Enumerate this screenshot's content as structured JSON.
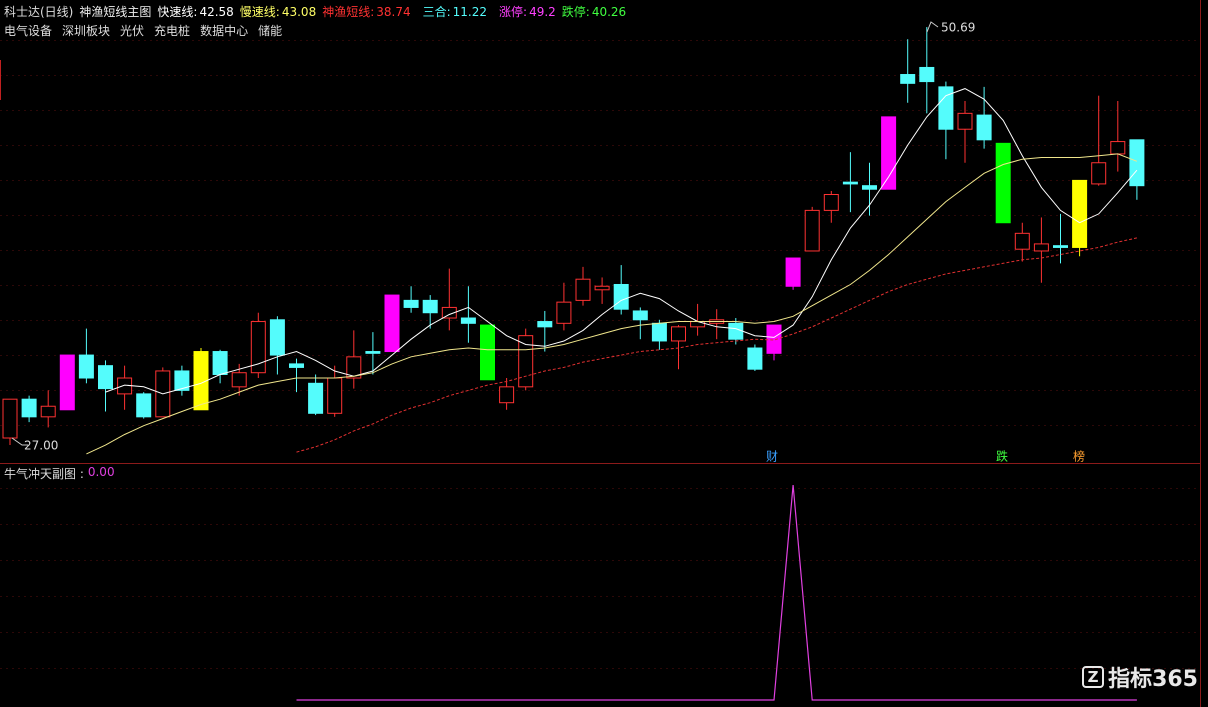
{
  "header": {
    "stock": "科士达(日线)",
    "indicator": "神渔短线主图",
    "readouts": [
      {
        "name": "快速线:",
        "value": 42.58,
        "color": "#ffffff"
      },
      {
        "name": "慢速线:",
        "value": 43.08,
        "color": "#ffff66"
      },
      {
        "name": "神渔短线:",
        "value": 38.74,
        "color": "#ff3232"
      },
      {
        "name": "三合:",
        "value": 11.22,
        "color": "#54fcfc"
      },
      {
        "name": "涨停:",
        "value": 49.2,
        "color": "#ff40ff"
      },
      {
        "name": "跌停:",
        "value": 40.26,
        "color": "#40ff40"
      }
    ],
    "sectors": [
      "电气设备",
      "深圳板块",
      "光伏",
      "充电桩",
      "数据中心",
      "储能"
    ]
  },
  "chart_data": [
    {
      "type": "candlestick",
      "ylim": [
        26.04,
        51.09
      ],
      "open": [
        27.4,
        29.6,
        28.6,
        29.0,
        32.1,
        31.5,
        29.9,
        29.9,
        28.6,
        31.2,
        29.0,
        32.3,
        30.3,
        31.1,
        34.1,
        31.6,
        30.5,
        28.8,
        30.8,
        32.3,
        32.3,
        35.2,
        35.2,
        34.2,
        34.2,
        33.8,
        29.4,
        30.3,
        34.0,
        33.9,
        35.2,
        35.8,
        36.1,
        34.6,
        33.9,
        32.9,
        33.7,
        33.9,
        33.9,
        32.5,
        32.2,
        36.0,
        38.0,
        40.3,
        41.9,
        41.7,
        41.5,
        48.0,
        48.4,
        47.3,
        44.9,
        45.7,
        44.1,
        38.1,
        38.0,
        38.3,
        38.2,
        41.8,
        43.5,
        44.3
      ],
      "high": [
        29.6,
        29.8,
        30.1,
        32.1,
        33.6,
        31.8,
        31.5,
        30.0,
        31.4,
        31.5,
        32.5,
        32.4,
        31.6,
        34.5,
        34.3,
        31.9,
        31.0,
        31.5,
        33.5,
        33.4,
        35.5,
        36.0,
        35.5,
        37.0,
        36.0,
        33.8,
        30.8,
        33.6,
        34.6,
        36.2,
        37.1,
        36.5,
        37.2,
        34.8,
        34.1,
        33.8,
        35.0,
        34.7,
        34.2,
        32.7,
        33.8,
        37.6,
        40.5,
        41.4,
        43.6,
        43.0,
        45.6,
        50.0,
        50.69,
        47.6,
        46.5,
        47.3,
        44.1,
        39.6,
        39.9,
        40.1,
        42.0,
        46.8,
        46.5,
        44.3
      ],
      "low": [
        27.0,
        28.3,
        28.0,
        29.0,
        30.5,
        28.9,
        29.0,
        28.5,
        28.6,
        29.8,
        29.0,
        30.5,
        29.8,
        30.8,
        31.0,
        30.0,
        28.7,
        28.6,
        30.2,
        31.0,
        32.3,
        34.5,
        33.6,
        33.5,
        32.8,
        30.7,
        29.0,
        30.1,
        32.3,
        33.5,
        34.9,
        35.0,
        34.4,
        33.0,
        32.4,
        31.3,
        33.2,
        33.0,
        32.7,
        31.2,
        31.8,
        35.8,
        38.0,
        39.6,
        40.2,
        40.0,
        41.5,
        46.4,
        45.8,
        43.2,
        43.0,
        43.8,
        39.6,
        37.4,
        36.2,
        37.3,
        37.7,
        41.7,
        42.5,
        40.9
      ],
      "close": [
        29.6,
        28.6,
        29.2,
        32.1,
        30.8,
        30.2,
        30.8,
        28.6,
        31.2,
        30.1,
        32.3,
        31.0,
        31.1,
        34.0,
        32.1,
        31.4,
        28.8,
        30.8,
        32.0,
        32.2,
        35.5,
        34.8,
        34.5,
        34.8,
        33.9,
        30.7,
        30.3,
        33.2,
        33.7,
        35.1,
        36.4,
        36.0,
        34.7,
        34.1,
        32.9,
        33.7,
        34.0,
        34.1,
        33.0,
        31.3,
        33.8,
        37.6,
        40.3,
        41.2,
        41.8,
        41.5,
        45.6,
        47.5,
        47.6,
        44.9,
        45.8,
        44.3,
        39.6,
        39.0,
        38.4,
        38.2,
        42.0,
        43.0,
        44.2,
        41.7
      ],
      "colors": [
        "#ff3232",
        "#54fcfc",
        "#ff3232",
        "#ff00ff",
        "#54fcfc",
        "#54fcfc",
        "#ff3232",
        "#54fcfc",
        "#ff3232",
        "#54fcfc",
        "#ffff00",
        "#54fcfc",
        "#ff3232",
        "#ff3232",
        "#54fcfc",
        "#54fcfc",
        "#54fcfc",
        "#ff3232",
        "#ff3232",
        "#54fcfc",
        "#ff00ff",
        "#54fcfc",
        "#54fcfc",
        "#ff3232",
        "#54fcfc",
        "#00ff00",
        "#ff3232",
        "#ff3232",
        "#54fcfc",
        "#ff3232",
        "#ff3232",
        "#ff3232",
        "#54fcfc",
        "#54fcfc",
        "#54fcfc",
        "#ff3232",
        "#ff3232",
        "#ff3232",
        "#54fcfc",
        "#54fcfc",
        "#ff00ff",
        "#ff00ff",
        "#ff3232",
        "#ff3232",
        "#54fcfc",
        "#54fcfc",
        "#ff00ff",
        "#54fcfc",
        "#54fcfc",
        "#54fcfc",
        "#ff3232",
        "#54fcfc",
        "#00ff00",
        "#ff3232",
        "#ff3232",
        "#54fcfc",
        "#ffff00",
        "#ff3232",
        "#ff3232",
        "#54fcfc"
      ],
      "up_color": "#ff3232",
      "series": [
        {
          "color": "#ffffff",
          "dash": false,
          "values": [
            null,
            null,
            null,
            null,
            null,
            30.0,
            30.4,
            30.3,
            29.9,
            30.2,
            30.5,
            31.0,
            31.3,
            31.6,
            32.0,
            32.3,
            31.8,
            31.2,
            30.9,
            31.2,
            32.1,
            33.0,
            33.8,
            34.4,
            34.8,
            34.0,
            33.2,
            32.7,
            32.6,
            32.9,
            33.5,
            34.4,
            35.2,
            35.6,
            35.3,
            34.6,
            34.0,
            33.7,
            33.6,
            33.2,
            33.1,
            33.8,
            35.4,
            37.5,
            39.3,
            40.6,
            42.2,
            44.0,
            45.6,
            46.8,
            47.2,
            46.6,
            45.4,
            43.4,
            41.6,
            40.3,
            39.6,
            40.1,
            41.3,
            42.58
          ]
        },
        {
          "color": "#f0e68c",
          "dash": false,
          "values": [
            null,
            null,
            null,
            null,
            26.5,
            27.0,
            27.6,
            28.1,
            28.5,
            28.9,
            29.3,
            29.6,
            30.0,
            30.4,
            30.6,
            30.8,
            30.8,
            30.8,
            30.9,
            31.1,
            31.6,
            32.0,
            32.2,
            32.4,
            32.5,
            32.4,
            32.4,
            32.4,
            32.5,
            32.7,
            33.0,
            33.3,
            33.6,
            33.8,
            33.9,
            34.0,
            34.0,
            34.0,
            34.0,
            33.9,
            34.0,
            34.3,
            34.9,
            35.5,
            36.1,
            36.9,
            37.8,
            38.8,
            39.8,
            40.8,
            41.6,
            42.4,
            42.9,
            43.2,
            43.3,
            43.3,
            43.3,
            43.4,
            43.5,
            43.08
          ]
        },
        {
          "color": "#e03030",
          "dash": true,
          "values": [
            null,
            null,
            null,
            null,
            null,
            null,
            null,
            null,
            null,
            null,
            null,
            null,
            null,
            null,
            null,
            26.6,
            26.9,
            27.3,
            27.8,
            28.2,
            28.7,
            29.1,
            29.4,
            29.8,
            30.1,
            30.4,
            30.6,
            30.9,
            31.2,
            31.4,
            31.7,
            31.9,
            32.1,
            32.3,
            32.4,
            32.5,
            32.7,
            32.8,
            32.9,
            33.0,
            32.95,
            33.3,
            33.7,
            34.2,
            34.7,
            35.2,
            35.7,
            36.1,
            36.4,
            36.7,
            36.9,
            37.1,
            37.3,
            37.5,
            37.6,
            37.8,
            38.0,
            38.2,
            38.5,
            38.74
          ]
        }
      ],
      "annotations": {
        "high_label": "50.69",
        "low_label": "27.00",
        "markers": [
          {
            "text": "财",
            "color": "#3aa0ff"
          },
          {
            "text": "跌",
            "color": "#40ff40"
          },
          {
            "text": "榜",
            "color": "#ffa030"
          }
        ]
      }
    },
    {
      "type": "line",
      "title": "牛气冲天副图 :",
      "value_label": "0.00",
      "ylim": [
        0,
        1
      ],
      "series": [
        {
          "color": "#e040e0",
          "values": [
            0,
            null,
            null,
            null,
            null,
            null,
            null,
            null,
            null,
            null,
            null,
            null,
            null,
            null,
            null,
            0,
            0,
            0,
            0,
            0,
            0,
            0,
            0,
            0,
            0,
            0,
            0,
            0,
            0,
            0,
            0,
            0,
            0,
            0,
            0,
            0,
            0,
            0,
            0,
            0,
            0,
            1,
            0,
            0,
            0,
            0,
            0,
            0,
            0,
            0,
            0,
            0,
            0,
            0,
            0,
            0,
            0,
            0,
            0,
            0
          ]
        }
      ]
    }
  ],
  "watermark": "指标365"
}
